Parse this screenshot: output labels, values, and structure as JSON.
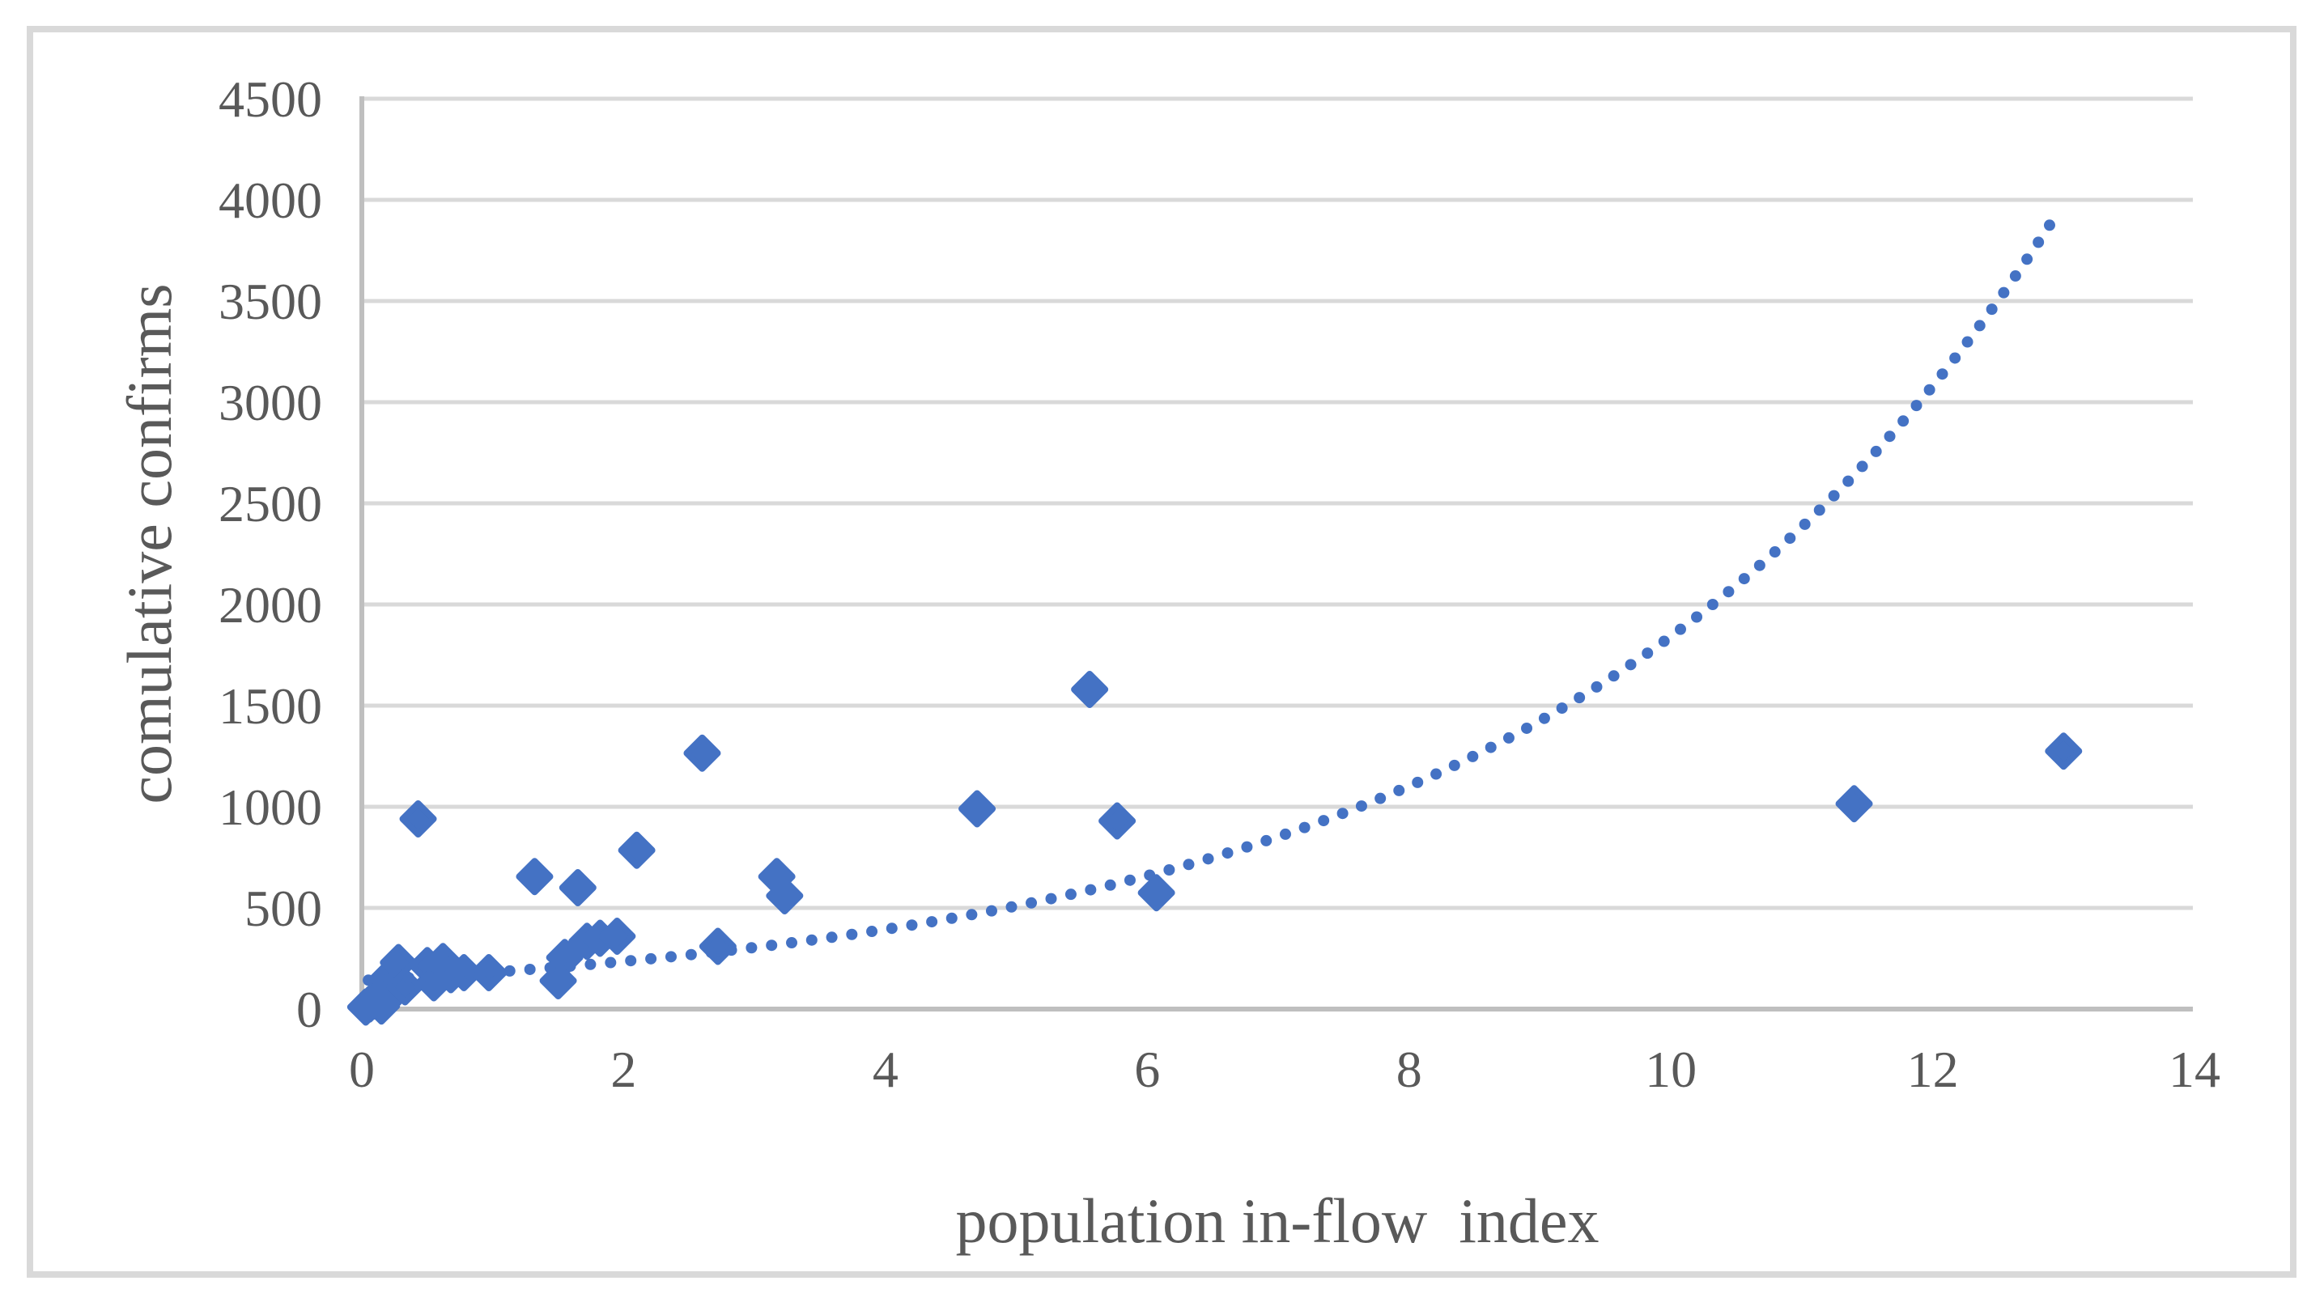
{
  "chart_data": {
    "type": "scatter",
    "title": "",
    "xlabel": "population in-flow  index",
    "ylabel": "comulative confirms",
    "xlim": [
      0,
      14
    ],
    "ylim": [
      0,
      4500
    ],
    "xticks": [
      0,
      2,
      4,
      6,
      8,
      10,
      12,
      14
    ],
    "yticks": [
      0,
      500,
      1000,
      1500,
      2000,
      2500,
      3000,
      3500,
      4000,
      4500
    ],
    "grid": "horizontal-only",
    "legend": "none",
    "marker_shape": "diamond",
    "points": [
      {
        "x": 0.03,
        "y": 10
      },
      {
        "x": 0.06,
        "y": 25
      },
      {
        "x": 0.1,
        "y": 40
      },
      {
        "x": 0.15,
        "y": 15
      },
      {
        "x": 0.18,
        "y": 140
      },
      {
        "x": 0.22,
        "y": 70
      },
      {
        "x": 0.28,
        "y": 230
      },
      {
        "x": 0.33,
        "y": 110
      },
      {
        "x": 0.43,
        "y": 940
      },
      {
        "x": 0.5,
        "y": 215
      },
      {
        "x": 0.55,
        "y": 130
      },
      {
        "x": 0.62,
        "y": 235
      },
      {
        "x": 0.68,
        "y": 170
      },
      {
        "x": 0.78,
        "y": 180
      },
      {
        "x": 0.97,
        "y": 180
      },
      {
        "x": 1.32,
        "y": 655
      },
      {
        "x": 1.5,
        "y": 140
      },
      {
        "x": 1.55,
        "y": 255
      },
      {
        "x": 1.65,
        "y": 600
      },
      {
        "x": 1.72,
        "y": 335
      },
      {
        "x": 1.82,
        "y": 350
      },
      {
        "x": 1.95,
        "y": 360
      },
      {
        "x": 2.1,
        "y": 785
      },
      {
        "x": 2.6,
        "y": 1265
      },
      {
        "x": 2.72,
        "y": 310
      },
      {
        "x": 3.17,
        "y": 655
      },
      {
        "x": 3.23,
        "y": 560
      },
      {
        "x": 4.7,
        "y": 990
      },
      {
        "x": 5.56,
        "y": 1580
      },
      {
        "x": 5.77,
        "y": 930
      },
      {
        "x": 6.07,
        "y": 575
      },
      {
        "x": 11.4,
        "y": 1015
      },
      {
        "x": 13.0,
        "y": 1275
      }
    ],
    "trendline": {
      "type": "exponential",
      "equation": "y = 141 * exp(0.257 * x)",
      "a": 141,
      "b": 0.257,
      "x_start": 0.05,
      "x_end": 12.9,
      "style": "dotted"
    },
    "colors": {
      "marker": "#4472C4",
      "trendline": "#4472C4",
      "gridline": "#D9D9D9",
      "axis_line": "#BFBFBF",
      "tick_text": "#595959",
      "title_text": "#595959",
      "chart_border": "#D9D9D9",
      "background": "#FFFFFF"
    }
  }
}
